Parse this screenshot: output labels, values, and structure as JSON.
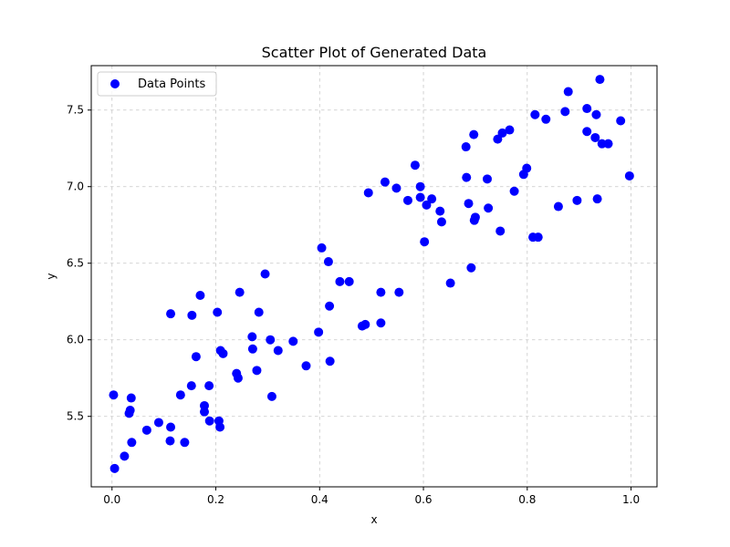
{
  "chart_data": {
    "type": "scatter",
    "title": "Scatter Plot of Generated Data",
    "xlabel": "x",
    "ylabel": "y",
    "xlim": [
      -0.04,
      1.05
    ],
    "ylim": [
      5.04,
      7.79
    ],
    "xticks": [
      0.0,
      0.2,
      0.4,
      0.6,
      0.8,
      1.0
    ],
    "xtick_labels": [
      "0.0",
      "0.2",
      "0.4",
      "0.6",
      "0.8",
      "1.0"
    ],
    "yticks": [
      5.5,
      6.0,
      6.5,
      7.0,
      7.5
    ],
    "ytick_labels": [
      "5.5",
      "6.0",
      "6.5",
      "7.0",
      "7.5"
    ],
    "grid": true,
    "legend_position": "top-left",
    "series": [
      {
        "name": "Data Points",
        "color": "#0000ff",
        "points": [
          [
            0.005,
            5.16
          ],
          [
            0.003,
            5.64
          ],
          [
            0.024,
            5.24
          ],
          [
            0.033,
            5.52
          ],
          [
            0.035,
            5.54
          ],
          [
            0.037,
            5.62
          ],
          [
            0.038,
            5.33
          ],
          [
            0.067,
            5.41
          ],
          [
            0.09,
            5.46
          ],
          [
            0.112,
            5.34
          ],
          [
            0.113,
            6.17
          ],
          [
            0.113,
            5.43
          ],
          [
            0.132,
            5.64
          ],
          [
            0.14,
            5.33
          ],
          [
            0.153,
            5.7
          ],
          [
            0.154,
            6.16
          ],
          [
            0.162,
            5.89
          ],
          [
            0.17,
            6.29
          ],
          [
            0.178,
            5.53
          ],
          [
            0.178,
            5.57
          ],
          [
            0.188,
            5.47
          ],
          [
            0.187,
            5.7
          ],
          [
            0.203,
            6.18
          ],
          [
            0.206,
            5.47
          ],
          [
            0.208,
            5.43
          ],
          [
            0.209,
            5.93
          ],
          [
            0.214,
            5.91
          ],
          [
            0.24,
            5.78
          ],
          [
            0.243,
            5.75
          ],
          [
            0.246,
            6.31
          ],
          [
            0.27,
            6.02
          ],
          [
            0.271,
            5.94
          ],
          [
            0.279,
            5.8
          ],
          [
            0.283,
            6.18
          ],
          [
            0.295,
            6.43
          ],
          [
            0.305,
            6.0
          ],
          [
            0.308,
            5.63
          ],
          [
            0.32,
            5.93
          ],
          [
            0.349,
            5.99
          ],
          [
            0.374,
            5.83
          ],
          [
            0.398,
            6.05
          ],
          [
            0.404,
            6.6
          ],
          [
            0.417,
            6.51
          ],
          [
            0.419,
            6.22
          ],
          [
            0.42,
            5.86
          ],
          [
            0.439,
            6.38
          ],
          [
            0.457,
            6.38
          ],
          [
            0.482,
            6.09
          ],
          [
            0.488,
            6.1
          ],
          [
            0.494,
            6.96
          ],
          [
            0.518,
            6.31
          ],
          [
            0.518,
            6.11
          ],
          [
            0.526,
            7.03
          ],
          [
            0.548,
            6.99
          ],
          [
            0.553,
            6.31
          ],
          [
            0.57,
            6.91
          ],
          [
            0.584,
            7.14
          ],
          [
            0.594,
            7.0
          ],
          [
            0.594,
            6.93
          ],
          [
            0.602,
            6.64
          ],
          [
            0.606,
            6.88
          ],
          [
            0.616,
            6.92
          ],
          [
            0.632,
            6.84
          ],
          [
            0.635,
            6.77
          ],
          [
            0.652,
            6.37
          ],
          [
            0.682,
            7.26
          ],
          [
            0.683,
            7.06
          ],
          [
            0.687,
            6.89
          ],
          [
            0.692,
            6.47
          ],
          [
            0.697,
            7.34
          ],
          [
            0.698,
            6.78
          ],
          [
            0.7,
            6.8
          ],
          [
            0.723,
            7.05
          ],
          [
            0.725,
            6.86
          ],
          [
            0.743,
            7.31
          ],
          [
            0.748,
            6.71
          ],
          [
            0.752,
            7.35
          ],
          [
            0.766,
            7.37
          ],
          [
            0.775,
            6.97
          ],
          [
            0.793,
            7.08
          ],
          [
            0.799,
            7.12
          ],
          [
            0.811,
            6.67
          ],
          [
            0.815,
            7.47
          ],
          [
            0.821,
            6.67
          ],
          [
            0.836,
            7.44
          ],
          [
            0.86,
            6.87
          ],
          [
            0.873,
            7.49
          ],
          [
            0.879,
            7.62
          ],
          [
            0.896,
            6.91
          ],
          [
            0.915,
            7.51
          ],
          [
            0.915,
            7.36
          ],
          [
            0.931,
            7.32
          ],
          [
            0.933,
            7.47
          ],
          [
            0.935,
            6.92
          ],
          [
            0.94,
            7.7
          ],
          [
            0.944,
            7.28
          ],
          [
            0.956,
            7.28
          ],
          [
            0.98,
            7.43
          ],
          [
            0.997,
            7.07
          ]
        ]
      }
    ]
  }
}
